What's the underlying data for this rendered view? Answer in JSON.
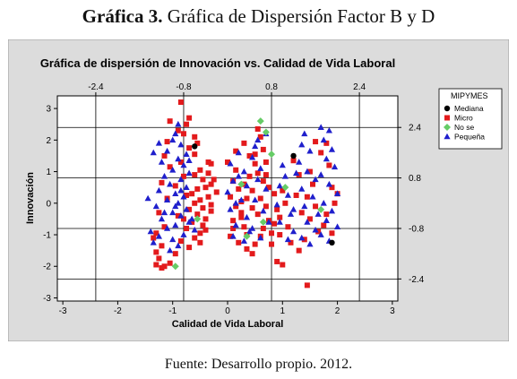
{
  "figure": {
    "label": "Gráfica 3.",
    "caption": "Gráfica de Dispersión Factor B y D",
    "source": "Fuente: Desarrollo propio. 2012."
  },
  "colors": {
    "panel": "#dcdcdc",
    "plot": "#ffffff",
    "Mediana": "#000000",
    "Micro": "#e31a1c",
    "No se": "#66cc66",
    "Pequeña": "#1f1fcc"
  },
  "chart_data": {
    "type": "scatter",
    "title": "Gráfica de dispersión de Innovación vs. Calidad de Vida Laboral",
    "xlabel": "Calidad de Vida Laboral",
    "ylabel": "Innovación",
    "xlim": [
      -3.1,
      3.1
    ],
    "ylim": [
      -3.1,
      3.4
    ],
    "x_ticks": [
      -3,
      -2,
      -1,
      0,
      1,
      2,
      3
    ],
    "y_ticks": [
      -3,
      -2,
      -1,
      0,
      1,
      2,
      3
    ],
    "top_ticks": [
      -2.4,
      -0.8,
      0.8,
      2.4
    ],
    "right_ticks": [
      2.4,
      0.8,
      -0.8,
      -2.4
    ],
    "top_tick_labels": [
      "-2.4",
      "-0.8",
      "0.8",
      "2.4"
    ],
    "right_tick_labels": [
      "2.4",
      "0.8",
      "-0.8",
      "-2.4"
    ],
    "reference_lines_x": [
      -2.4,
      -0.8,
      0.8,
      2.4
    ],
    "reference_lines_y": [
      2.4,
      0.8,
      -0.8,
      -2.4
    ],
    "legend": {
      "title": "MIPYMES",
      "position": "top-right",
      "entries": [
        "Mediana",
        "Micro",
        "No se",
        "Pequeña"
      ]
    },
    "series": [
      {
        "name": "Mediana",
        "marker": "circle",
        "points": [
          [
            -0.6,
            1.8
          ],
          [
            1.2,
            1.5
          ],
          [
            1.9,
            -1.25
          ]
        ]
      },
      {
        "name": "Micro",
        "marker": "square",
        "points": [
          [
            -0.85,
            3.2
          ],
          [
            -0.7,
            2.7
          ],
          [
            -0.75,
            2.5
          ],
          [
            -0.9,
            2.3
          ],
          [
            -0.8,
            2.2
          ],
          [
            -0.6,
            2.1
          ],
          [
            -0.55,
            1.9
          ],
          [
            -0.7,
            1.75
          ],
          [
            -0.35,
            1.3
          ],
          [
            -0.5,
            1.05
          ],
          [
            -0.6,
            0.9
          ],
          [
            -0.45,
            0.75
          ],
          [
            -0.3,
            0.6
          ],
          [
            -0.4,
            0.5
          ],
          [
            -0.55,
            0.45
          ],
          [
            -0.65,
            0.3
          ],
          [
            -0.35,
            0.2
          ],
          [
            -0.5,
            0.1
          ],
          [
            -0.6,
            0.0
          ],
          [
            -0.45,
            -0.15
          ],
          [
            -0.7,
            -0.2
          ],
          [
            -0.55,
            -0.35
          ],
          [
            -0.4,
            -0.5
          ],
          [
            -0.65,
            -0.6
          ],
          [
            -0.75,
            -0.8
          ],
          [
            -0.5,
            -0.95
          ],
          [
            -0.6,
            -1.1
          ],
          [
            -0.85,
            -1.2
          ],
          [
            -0.7,
            -1.4
          ],
          [
            -0.45,
            -0.7
          ],
          [
            -0.3,
            -0.05
          ],
          [
            -1.05,
            2.6
          ],
          [
            -1.1,
            1.95
          ],
          [
            -1.15,
            1.5
          ],
          [
            -1.05,
            1.15
          ],
          [
            -1.2,
            0.65
          ],
          [
            -1.1,
            0.15
          ],
          [
            -1.25,
            -0.3
          ],
          [
            -1.15,
            -0.75
          ],
          [
            -1.3,
            -0.95
          ],
          [
            -1.35,
            -1.1
          ],
          [
            -1.2,
            -1.35
          ],
          [
            -1.3,
            -1.55
          ],
          [
            -1.25,
            -1.75
          ],
          [
            -1.05,
            -1.9
          ],
          [
            -1.15,
            -2.0
          ],
          [
            -1.3,
            -1.95
          ],
          [
            -1.2,
            -2.05
          ],
          [
            -0.95,
            -1.6
          ],
          [
            -0.9,
            -0.4
          ],
          [
            -0.95,
            0.55
          ],
          [
            -0.85,
            1.3
          ],
          [
            -0.3,
            1.25
          ],
          [
            -0.25,
            0.75
          ],
          [
            -0.2,
            0.35
          ],
          [
            -0.3,
            -0.25
          ],
          [
            0.0,
            1.3
          ],
          [
            0.15,
            1.05
          ],
          [
            0.1,
            0.7
          ],
          [
            0.2,
            0.45
          ],
          [
            0.05,
            0.2
          ],
          [
            0.15,
            -0.1
          ],
          [
            0.25,
            -0.3
          ],
          [
            0.1,
            -0.55
          ],
          [
            0.3,
            -0.75
          ],
          [
            0.05,
            -1.05
          ],
          [
            0.2,
            -1.25
          ],
          [
            0.35,
            -1.45
          ],
          [
            0.45,
            -1.6
          ],
          [
            0.5,
            -1.3
          ],
          [
            0.6,
            -1.05
          ],
          [
            0.4,
            1.5
          ],
          [
            0.5,
            1.25
          ],
          [
            0.55,
            0.95
          ],
          [
            0.65,
            0.7
          ],
          [
            0.45,
            0.4
          ],
          [
            0.6,
            0.15
          ],
          [
            0.7,
            -0.1
          ],
          [
            0.55,
            -0.35
          ],
          [
            0.75,
            -0.55
          ],
          [
            0.65,
            -0.8
          ],
          [
            0.8,
            -0.95
          ],
          [
            0.35,
            0.15
          ],
          [
            0.3,
            0.6
          ],
          [
            0.25,
            -0.45
          ],
          [
            0.45,
            -0.15
          ],
          [
            0.55,
            2.35
          ],
          [
            0.6,
            2.1
          ],
          [
            0.65,
            1.7
          ],
          [
            0.5,
            1.55
          ],
          [
            0.7,
            1.3
          ],
          [
            0.75,
            0.5
          ],
          [
            0.85,
            0.3
          ],
          [
            0.9,
            -0.2
          ],
          [
            0.85,
            -0.65
          ],
          [
            1.0,
            0.4
          ],
          [
            1.05,
            0.0
          ],
          [
            0.95,
            -0.45
          ],
          [
            1.1,
            -0.75
          ],
          [
            0.95,
            -1.0
          ],
          [
            1.15,
            -1.25
          ],
          [
            0.9,
            -1.85
          ],
          [
            1.0,
            -1.95
          ],
          [
            1.45,
            -2.6
          ],
          [
            1.3,
            -1.5
          ],
          [
            1.4,
            -1.15
          ],
          [
            1.25,
            0.25
          ],
          [
            1.35,
            -0.3
          ],
          [
            1.5,
            1.0
          ],
          [
            1.55,
            0.6
          ],
          [
            1.45,
            0.2
          ],
          [
            1.6,
            -0.1
          ],
          [
            1.5,
            -0.5
          ],
          [
            1.65,
            -0.9
          ],
          [
            1.7,
            1.6
          ],
          [
            1.8,
            1.9
          ],
          [
            1.85,
            1.2
          ],
          [
            1.9,
            0.5
          ],
          [
            1.95,
            0.0
          ],
          [
            1.8,
            -0.35
          ],
          [
            1.75,
            -0.7
          ],
          [
            1.9,
            -0.95
          ],
          [
            2.0,
            0.3
          ],
          [
            1.6,
            1.95
          ],
          [
            1.2,
            1.35
          ],
          [
            1.3,
            0.9
          ],
          [
            0.15,
            1.65
          ],
          [
            0.3,
            1.9
          ],
          [
            0.4,
            0.85
          ],
          [
            0.25,
            0.05
          ],
          [
            0.1,
            -0.8
          ],
          [
            0.35,
            -1.0
          ],
          [
            0.7,
            0.9
          ],
          [
            0.8,
            -1.3
          ],
          [
            -0.5,
            -1.25
          ],
          [
            -0.4,
            -0.85
          ],
          [
            -0.35,
            0.95
          ],
          [
            -0.6,
            1.55
          ],
          [
            -0.8,
            0.85
          ],
          [
            -0.75,
            0.25
          ],
          [
            -0.8,
            -0.5
          ]
        ]
      },
      {
        "name": "No se",
        "marker": "diamond",
        "points": [
          [
            0.6,
            2.6
          ],
          [
            0.7,
            2.25
          ],
          [
            0.8,
            1.55
          ],
          [
            -0.95,
            -2.0
          ],
          [
            -0.55,
            -0.5
          ],
          [
            0.25,
            0.6
          ],
          [
            0.65,
            -0.6
          ],
          [
            0.35,
            -1.05
          ],
          [
            1.05,
            0.5
          ],
          [
            1.7,
            -0.2
          ]
        ]
      },
      {
        "name": "Pequeña",
        "marker": "triangle",
        "points": [
          [
            -0.95,
            2.2
          ],
          [
            -1.0,
            2.0
          ],
          [
            -0.85,
            1.85
          ],
          [
            -1.1,
            1.65
          ],
          [
            -0.75,
            1.55
          ],
          [
            -0.9,
            1.4
          ],
          [
            -1.2,
            1.3
          ],
          [
            -0.8,
            1.2
          ],
          [
            -1.0,
            1.05
          ],
          [
            -0.7,
            0.95
          ],
          [
            -1.15,
            0.85
          ],
          [
            -0.85,
            0.75
          ],
          [
            -1.05,
            0.6
          ],
          [
            -0.75,
            0.5
          ],
          [
            -1.25,
            0.4
          ],
          [
            -0.95,
            0.3
          ],
          [
            -0.8,
            0.2
          ],
          [
            -1.1,
            0.1
          ],
          [
            -0.9,
            0.0
          ],
          [
            -1.3,
            -0.1
          ],
          [
            -0.75,
            -0.2
          ],
          [
            -1.0,
            -0.3
          ],
          [
            -0.85,
            -0.4
          ],
          [
            -1.2,
            -0.5
          ],
          [
            -0.7,
            -0.6
          ],
          [
            -0.95,
            -0.7
          ],
          [
            -1.1,
            -0.8
          ],
          [
            -1.4,
            -0.9
          ],
          [
            -0.8,
            -1.0
          ],
          [
            -1.25,
            -1.05
          ],
          [
            -1.0,
            -1.15
          ],
          [
            -1.35,
            -1.25
          ],
          [
            -0.9,
            -1.35
          ],
          [
            -1.05,
            -1.5
          ],
          [
            -0.65,
            -0.5
          ],
          [
            -0.6,
            -0.85
          ],
          [
            -1.45,
            0.15
          ],
          [
            -1.35,
            1.6
          ],
          [
            -1.25,
            1.9
          ],
          [
            -0.9,
            2.5
          ],
          [
            -0.7,
            1.35
          ],
          [
            -0.95,
            -0.1
          ],
          [
            -1.15,
            -0.3
          ],
          [
            -0.85,
            0.4
          ],
          [
            0.2,
            1.6
          ],
          [
            0.05,
            1.25
          ],
          [
            0.3,
            1.0
          ],
          [
            0.1,
            0.7
          ],
          [
            0.0,
            0.35
          ],
          [
            0.25,
            0.1
          ],
          [
            0.05,
            -0.2
          ],
          [
            0.35,
            -0.45
          ],
          [
            0.15,
            -0.7
          ],
          [
            0.4,
            -0.9
          ],
          [
            0.1,
            -1.05
          ],
          [
            0.3,
            -1.2
          ],
          [
            0.5,
            1.8
          ],
          [
            0.45,
            1.45
          ],
          [
            0.6,
            1.1
          ],
          [
            0.55,
            0.75
          ],
          [
            0.7,
            0.45
          ],
          [
            0.5,
            0.1
          ],
          [
            0.65,
            -0.25
          ],
          [
            0.75,
            -0.6
          ],
          [
            0.45,
            -0.8
          ],
          [
            0.6,
            -1.1
          ],
          [
            0.2,
            0.85
          ],
          [
            0.35,
            0.55
          ],
          [
            0.15,
            0.0
          ],
          [
            0.55,
            2.0
          ],
          [
            0.7,
            2.2
          ],
          [
            1.0,
            1.2
          ],
          [
            1.05,
            0.85
          ],
          [
            0.95,
            0.55
          ],
          [
            1.1,
            0.25
          ],
          [
            0.9,
            -0.05
          ],
          [
            1.15,
            -0.35
          ],
          [
            0.95,
            -0.6
          ],
          [
            1.2,
            -0.9
          ],
          [
            1.4,
            2.2
          ],
          [
            1.35,
            1.85
          ],
          [
            1.5,
            1.65
          ],
          [
            1.3,
            1.3
          ],
          [
            1.45,
            1.0
          ],
          [
            1.6,
            0.75
          ],
          [
            1.35,
            0.45
          ],
          [
            1.55,
            0.2
          ],
          [
            1.4,
            -0.1
          ],
          [
            1.65,
            -0.35
          ],
          [
            1.45,
            -0.6
          ],
          [
            1.6,
            -0.85
          ],
          [
            1.35,
            -1.1
          ],
          [
            1.5,
            -1.3
          ],
          [
            1.7,
            2.4
          ],
          [
            1.85,
            2.3
          ],
          [
            1.75,
            2.0
          ],
          [
            1.9,
            1.7
          ],
          [
            1.8,
            1.4
          ],
          [
            1.95,
            1.15
          ],
          [
            1.7,
            0.9
          ],
          [
            1.85,
            0.6
          ],
          [
            2.0,
            0.3
          ],
          [
            1.75,
            0.0
          ],
          [
            1.9,
            -0.25
          ],
          [
            1.8,
            -0.55
          ],
          [
            2.0,
            -0.75
          ],
          [
            1.7,
            -1.0
          ],
          [
            1.85,
            -1.2
          ],
          [
            1.25,
            0.95
          ],
          [
            1.2,
            -0.2
          ],
          [
            1.1,
            -1.15
          ]
        ]
      }
    ]
  }
}
